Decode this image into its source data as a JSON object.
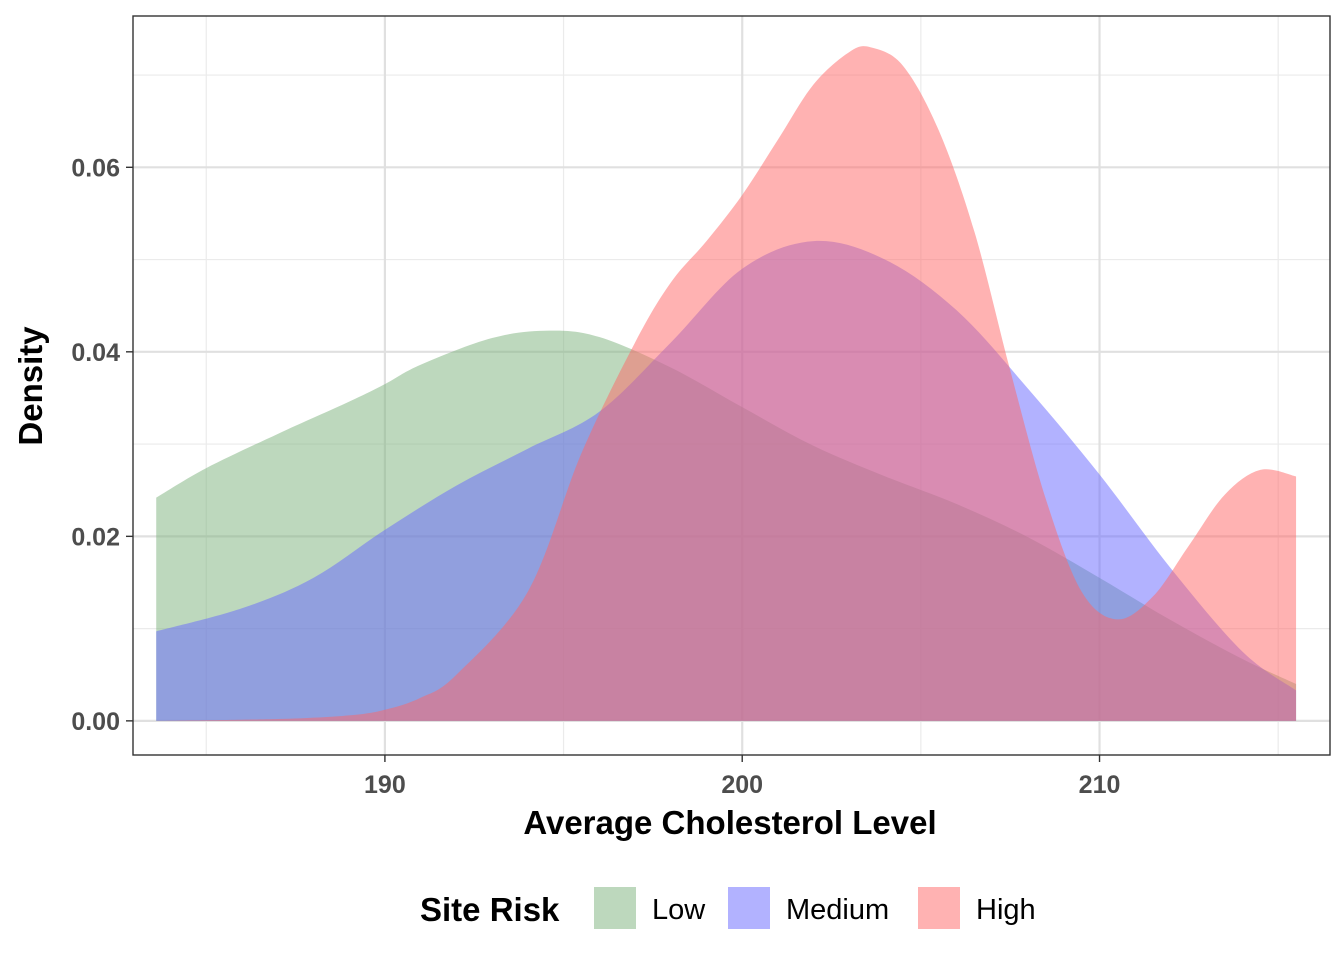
{
  "chart_data": {
    "type": "area",
    "subtype": "density",
    "title": "",
    "xlabel": "Average Cholesterol Level",
    "ylabel": "Density",
    "xlim": [
      182.95,
      216.45
    ],
    "ylim": [
      -0.0037,
      0.0764
    ],
    "x_ticks": [
      190,
      200,
      210
    ],
    "x_tick_labels": [
      "190",
      "200",
      "210"
    ],
    "y_ticks": [
      0.0,
      0.02,
      0.04,
      0.06
    ],
    "y_tick_labels": [
      "0.00",
      "0.02",
      "0.04",
      "0.06"
    ],
    "grid": true,
    "legend": {
      "title": "Site Risk",
      "position": "bottom"
    },
    "series": [
      {
        "name": "Low",
        "color": "#7bb27b",
        "x": [
          183.6,
          185,
          187,
          189,
          190,
          191,
          193,
          194.6,
          196,
          198,
          200,
          202,
          204,
          206,
          208,
          210,
          212,
          214,
          215.5
        ],
        "y": [
          0.0242,
          0.0274,
          0.0311,
          0.0346,
          0.0365,
          0.0386,
          0.0415,
          0.0423,
          0.0416,
          0.0383,
          0.034,
          0.0298,
          0.0265,
          0.0235,
          0.0199,
          0.0155,
          0.0109,
          0.0067,
          0.004
        ]
      },
      {
        "name": "Medium",
        "color": "#6666ff",
        "x": [
          183.6,
          186,
          188,
          190,
          192,
          194,
          196,
          198,
          200,
          202,
          204,
          206,
          208,
          210,
          212,
          214,
          215.5
        ],
        "y": [
          0.0097,
          0.0122,
          0.0155,
          0.0207,
          0.0255,
          0.0295,
          0.0335,
          0.041,
          0.049,
          0.052,
          0.05,
          0.0445,
          0.036,
          0.0267,
          0.0165,
          0.0075,
          0.0033
        ]
      },
      {
        "name": "High",
        "color": "#ff6666",
        "x": [
          183.6,
          187,
          189,
          190,
          191,
          192,
          194,
          195.5,
          197,
          198,
          199,
          200,
          201,
          202,
          203,
          203.6,
          204.5,
          205.5,
          206.5,
          207.5,
          208.5,
          209.5,
          210.5,
          211.5,
          212.5,
          213.5,
          214.5,
          215.5
        ],
        "y": [
          0.0,
          0.0002,
          0.0006,
          0.0012,
          0.0025,
          0.005,
          0.014,
          0.029,
          0.041,
          0.0475,
          0.052,
          0.057,
          0.063,
          0.069,
          0.0725,
          0.073,
          0.071,
          0.064,
          0.053,
          0.038,
          0.024,
          0.014,
          0.011,
          0.0135,
          0.019,
          0.0245,
          0.0272,
          0.0265
        ]
      }
    ]
  }
}
